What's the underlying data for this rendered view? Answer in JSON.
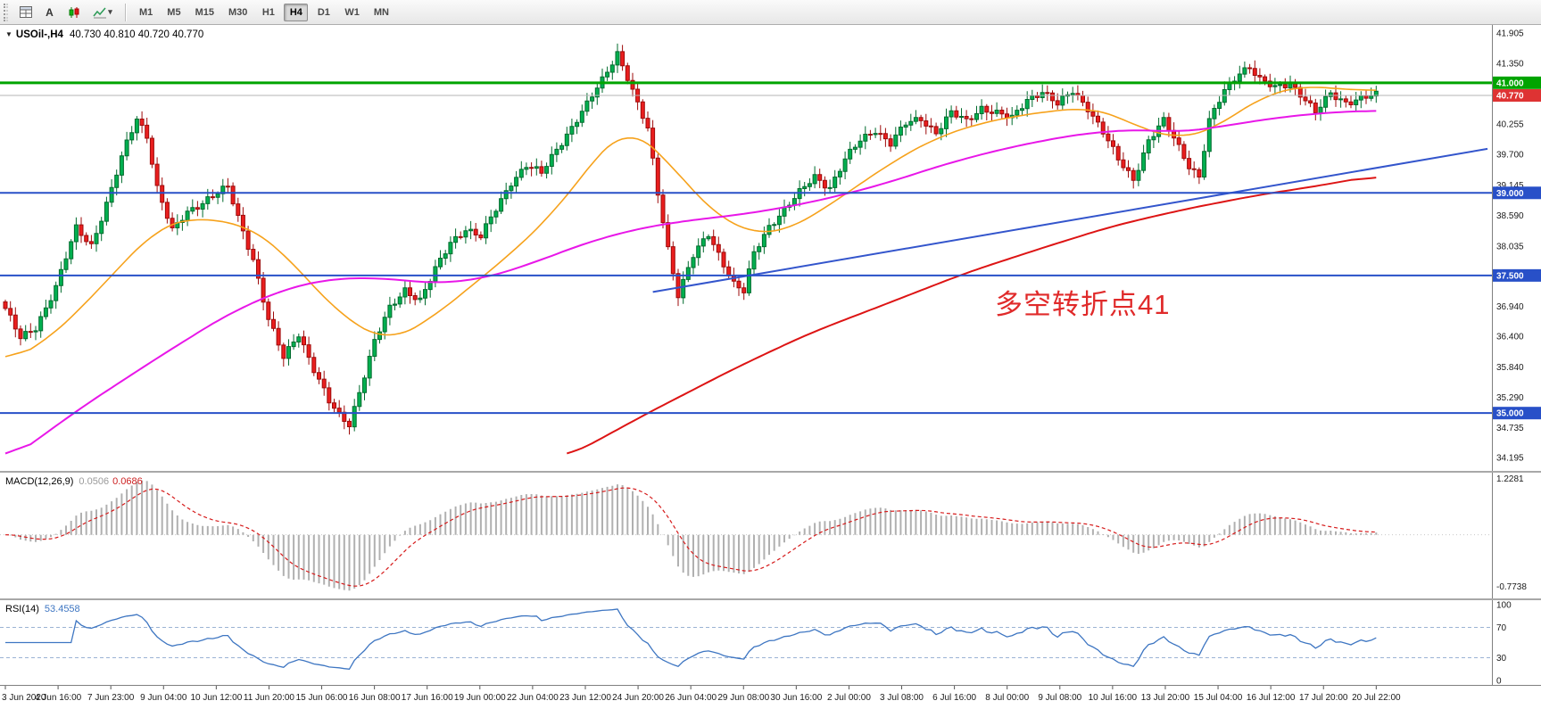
{
  "icons": {
    "collapse": "▼",
    "caret": "▾"
  },
  "toolbar": {
    "text_tool_label": "A",
    "timeframes": [
      "M1",
      "M5",
      "M15",
      "M30",
      "H1",
      "H4",
      "D1",
      "W1",
      "MN"
    ],
    "active_timeframe": "H4"
  },
  "chart": {
    "title_symbol": "USOil-,H4",
    "title_ohlc": "40.730 40.810 40.720 40.770",
    "annotation": {
      "text": "多空转折点41",
      "color": "#e02a2a"
    }
  },
  "price_axis": {
    "labels": [
      "41.905",
      "41.350",
      "40.805",
      "40.255",
      "39.700",
      "39.145",
      "38.590",
      "38.035",
      "37.485",
      "36.940",
      "36.400",
      "35.840",
      "35.290",
      "34.735",
      "34.195"
    ]
  },
  "macd_panel": {
    "label": "MACD(12,26,9)",
    "value_main": "0.0506",
    "value_signal": "0.0686",
    "axis_labels": [
      "1.2281",
      "-0.7738"
    ],
    "axis_values": [
      1.2281,
      -0.7738
    ]
  },
  "rsi_panel": {
    "label": "RSI(14)",
    "value": "53.4558",
    "axis_labels": [
      "100",
      "70",
      "30",
      "0"
    ],
    "axis_values": [
      100,
      70,
      30,
      0
    ],
    "levels": [
      70,
      30
    ]
  },
  "time_axis": {
    "labels": [
      "3 Jun 2020",
      "4 Jun 16:00",
      "7 Jun 23:00",
      "9 Jun 04:00",
      "10 Jun 12:00",
      "11 Jun 20:00",
      "15 Jun 06:00",
      "16 Jun 08:00",
      "17 Jun 16:00",
      "19 Jun 00:00",
      "22 Jun 04:00",
      "23 Jun 12:00",
      "24 Jun 20:00",
      "26 Jun 04:00",
      "29 Jun 08:00",
      "30 Jun 16:00",
      "2 Jul 00:00",
      "3 Jul 08:00",
      "6 Jul 16:00",
      "8 Jul 00:00",
      "9 Jul 08:00",
      "10 Jul 16:00",
      "13 Jul 20:00",
      "15 Jul 04:00",
      "16 Jul 12:00",
      "17 Jul 20:00",
      "20 Jul 22:00"
    ]
  },
  "chart_data": {
    "type": "candlestick",
    "title": "USOil-,H4",
    "symbol": "USOil",
    "timeframe": "H4",
    "ohlc_current": {
      "open": 40.73,
      "high": 40.81,
      "low": 40.72,
      "close": 40.77
    },
    "num_bars": 272,
    "price_range": [
      33.95,
      42.05
    ],
    "close_keyframes": [
      [
        0,
        36.9
      ],
      [
        3,
        36.35
      ],
      [
        6,
        36.55
      ],
      [
        10,
        37.3
      ],
      [
        14,
        38.35
      ],
      [
        17,
        38.05
      ],
      [
        20,
        38.8
      ],
      [
        24,
        39.9
      ],
      [
        26,
        40.35
      ],
      [
        28,
        40.05
      ],
      [
        30,
        39.1
      ],
      [
        33,
        38.3
      ],
      [
        36,
        38.65
      ],
      [
        40,
        38.9
      ],
      [
        44,
        39.1
      ],
      [
        46,
        38.55
      ],
      [
        49,
        37.8
      ],
      [
        52,
        36.7
      ],
      [
        55,
        36.0
      ],
      [
        58,
        36.45
      ],
      [
        61,
        35.8
      ],
      [
        64,
        35.2
      ],
      [
        66,
        34.95
      ],
      [
        68,
        34.8
      ],
      [
        70,
        35.4
      ],
      [
        73,
        36.3
      ],
      [
        76,
        36.9
      ],
      [
        79,
        37.25
      ],
      [
        82,
        37.05
      ],
      [
        85,
        37.6
      ],
      [
        88,
        38.1
      ],
      [
        91,
        38.35
      ],
      [
        94,
        38.2
      ],
      [
        97,
        38.7
      ],
      [
        100,
        39.2
      ],
      [
        103,
        39.5
      ],
      [
        106,
        39.35
      ],
      [
        109,
        39.8
      ],
      [
        112,
        40.2
      ],
      [
        115,
        40.6
      ],
      [
        118,
        41.05
      ],
      [
        121,
        41.55
      ],
      [
        123,
        41.1
      ],
      [
        125,
        40.6
      ],
      [
        127,
        40.15
      ],
      [
        129,
        39.0
      ],
      [
        131,
        38.0
      ],
      [
        133,
        37.15
      ],
      [
        136,
        37.85
      ],
      [
        139,
        38.25
      ],
      [
        141,
        37.9
      ],
      [
        144,
        37.35
      ],
      [
        146,
        37.2
      ],
      [
        148,
        37.9
      ],
      [
        151,
        38.4
      ],
      [
        154,
        38.7
      ],
      [
        157,
        39.0
      ],
      [
        160,
        39.3
      ],
      [
        163,
        39.1
      ],
      [
        166,
        39.6
      ],
      [
        169,
        39.95
      ],
      [
        172,
        40.15
      ],
      [
        175,
        39.9
      ],
      [
        178,
        40.25
      ],
      [
        181,
        40.35
      ],
      [
        184,
        40.1
      ],
      [
        187,
        40.45
      ],
      [
        190,
        40.3
      ],
      [
        193,
        40.55
      ],
      [
        196,
        40.45
      ],
      [
        199,
        40.35
      ],
      [
        202,
        40.7
      ],
      [
        205,
        40.85
      ],
      [
        208,
        40.6
      ],
      [
        211,
        40.85
      ],
      [
        214,
        40.55
      ],
      [
        217,
        40.1
      ],
      [
        220,
        39.6
      ],
      [
        223,
        39.25
      ],
      [
        226,
        39.95
      ],
      [
        229,
        40.3
      ],
      [
        231,
        40.0
      ],
      [
        234,
        39.5
      ],
      [
        236,
        39.3
      ],
      [
        238,
        40.3
      ],
      [
        241,
        40.85
      ],
      [
        244,
        41.2
      ],
      [
        246,
        41.3
      ],
      [
        248,
        41.05
      ],
      [
        251,
        40.9
      ],
      [
        254,
        41.0
      ],
      [
        257,
        40.7
      ],
      [
        259,
        40.45
      ],
      [
        262,
        40.8
      ],
      [
        265,
        40.65
      ],
      [
        268,
        40.72
      ],
      [
        271,
        40.77
      ]
    ],
    "ma_lines": [
      {
        "name": "ma-fast-orange",
        "color": "#f6a21c",
        "width": 1.6,
        "keyframes": [
          [
            0,
            35.9
          ],
          [
            8,
            36.3
          ],
          [
            16,
            37.0
          ],
          [
            24,
            37.8
          ],
          [
            30,
            38.35
          ],
          [
            36,
            38.55
          ],
          [
            42,
            38.5
          ],
          [
            48,
            38.4
          ],
          [
            54,
            38.0
          ],
          [
            60,
            37.4
          ],
          [
            66,
            36.8
          ],
          [
            72,
            36.45
          ],
          [
            76,
            36.3
          ],
          [
            84,
            36.7
          ],
          [
            92,
            37.3
          ],
          [
            100,
            37.9
          ],
          [
            108,
            38.6
          ],
          [
            114,
            39.3
          ],
          [
            119,
            39.9
          ],
          [
            123,
            40.2
          ],
          [
            130,
            39.7
          ],
          [
            136,
            39.0
          ],
          [
            142,
            38.5
          ],
          [
            148,
            38.25
          ],
          [
            154,
            38.3
          ],
          [
            160,
            38.6
          ],
          [
            168,
            39.1
          ],
          [
            176,
            39.6
          ],
          [
            184,
            40.0
          ],
          [
            192,
            40.25
          ],
          [
            200,
            40.4
          ],
          [
            208,
            40.5
          ],
          [
            214,
            40.55
          ],
          [
            220,
            40.4
          ],
          [
            226,
            40.1
          ],
          [
            232,
            40.0
          ],
          [
            238,
            40.1
          ],
          [
            244,
            40.5
          ],
          [
            250,
            40.8
          ],
          [
            256,
            40.95
          ],
          [
            262,
            40.9
          ],
          [
            271,
            40.85
          ]
        ]
      },
      {
        "name": "ma-medium-magenta",
        "color": "#e817e8",
        "width": 2,
        "keyframes": [
          [
            0,
            34.1
          ],
          [
            15,
            35.1
          ],
          [
            30,
            36.0
          ],
          [
            44,
            36.8
          ],
          [
            55,
            37.25
          ],
          [
            65,
            37.45
          ],
          [
            75,
            37.45
          ],
          [
            85,
            37.35
          ],
          [
            95,
            37.45
          ],
          [
            105,
            37.75
          ],
          [
            115,
            38.1
          ],
          [
            125,
            38.35
          ],
          [
            135,
            38.5
          ],
          [
            145,
            38.6
          ],
          [
            155,
            38.75
          ],
          [
            165,
            38.95
          ],
          [
            175,
            39.2
          ],
          [
            185,
            39.5
          ],
          [
            195,
            39.75
          ],
          [
            205,
            39.95
          ],
          [
            215,
            40.1
          ],
          [
            225,
            40.15
          ],
          [
            232,
            40.1
          ],
          [
            240,
            40.2
          ],
          [
            250,
            40.35
          ],
          [
            260,
            40.45
          ],
          [
            271,
            40.5
          ]
        ]
      },
      {
        "name": "ma-slow-red",
        "color": "#dd1414",
        "width": 2,
        "keyframes": [
          [
            111,
            34.2
          ],
          [
            127,
            35.0
          ],
          [
            145,
            35.85
          ],
          [
            159,
            36.45
          ],
          [
            176,
            37.05
          ],
          [
            190,
            37.55
          ],
          [
            205,
            38.0
          ],
          [
            219,
            38.4
          ],
          [
            233,
            38.7
          ],
          [
            247,
            38.95
          ],
          [
            261,
            39.15
          ],
          [
            271,
            39.32
          ]
        ]
      }
    ],
    "horizontal_lines": [
      {
        "price": 41.0,
        "color": "#00a400",
        "width": 3,
        "label": "41.000",
        "badge": "#00a400"
      },
      {
        "price": 40.77,
        "color": "#b4b4b4",
        "width": 1,
        "label": "40.770",
        "badge": "#de3333"
      },
      {
        "price": 39.0,
        "color": "#2850c8",
        "width": 2,
        "label": "39.000",
        "badge": "#2850c8"
      },
      {
        "price": 37.5,
        "color": "#2850c8",
        "width": 2,
        "label": "37.500",
        "badge": "#2850c8"
      },
      {
        "price": 35.0,
        "color": "#2850c8",
        "width": 2,
        "label": "35.000",
        "badge": "#2850c8"
      }
    ],
    "trendline": {
      "from": [
        128,
        37.2
      ],
      "to": [
        293,
        39.8
      ],
      "color": "#3355cc",
      "width": 2
    },
    "indicators": {
      "macd": {
        "fast": 12,
        "slow": 26,
        "signal": 9,
        "current_main": 0.0506,
        "current_signal": 0.0686,
        "axis_max": 1.2281,
        "axis_min": -0.7738
      },
      "rsi": {
        "period": 14,
        "current": 53.4558,
        "levels": [
          30,
          70
        ],
        "range": [
          0,
          100
        ]
      }
    },
    "colors": {
      "up": "#00b050",
      "up_stroke": "#006b2d",
      "down": "#ea1e1e",
      "down_stroke": "#9e0b0b",
      "macd_hist": "#b0b0b0",
      "macd_signal": "#d61a1a",
      "rsi_line": "#3e76c2",
      "rsi_level": "#9bb3d4"
    }
  }
}
